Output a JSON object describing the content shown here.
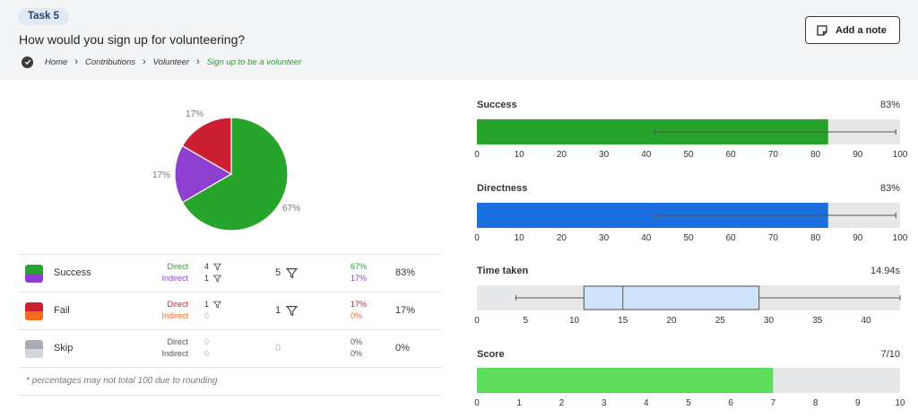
{
  "header": {
    "task_label": "Task 5",
    "question": "How would you sign up for volunteering?",
    "breadcrumb": [
      "Home",
      "Contributions",
      "Volunteer",
      "Sign up to be a volunteer"
    ],
    "add_note_label": "Add a note"
  },
  "legend": {
    "rows": [
      {
        "name": "Success",
        "colors": [
          "#27a42b",
          "#8e3fd0"
        ],
        "sub_labels": [
          "Direct",
          "Indirect"
        ],
        "sub_label_colors": [
          "#27a42b",
          "#8e3fd0"
        ],
        "sub_counts": [
          "4",
          "1"
        ],
        "sub_count_colors": [
          "#333333",
          "#333333"
        ],
        "sub_filter": [
          true,
          true
        ],
        "total": "5",
        "total_filter": true,
        "sub_pcts": [
          "67%",
          "17%"
        ],
        "sub_pct_colors": [
          "#27a42b",
          "#8e3fd0"
        ],
        "pct": "83%"
      },
      {
        "name": "Fail",
        "colors": [
          "#cc1f31",
          "#f26a1b"
        ],
        "sub_labels": [
          "Direct",
          "Indirect"
        ],
        "sub_label_colors": [
          "#cc1f31",
          "#f26a1b"
        ],
        "sub_counts": [
          "1",
          "0"
        ],
        "sub_count_colors": [
          "#333333",
          "#bbbbbb"
        ],
        "sub_filter": [
          true,
          false
        ],
        "total": "1",
        "total_filter": true,
        "sub_pcts": [
          "17%",
          "0%"
        ],
        "sub_pct_colors": [
          "#cc1f31",
          "#f26a1b"
        ],
        "pct": "17%"
      },
      {
        "name": "Skip",
        "colors": [
          "#a9adb3",
          "#d3d6da"
        ],
        "sub_labels": [
          "Direct",
          "Indirect"
        ],
        "sub_label_colors": [
          "#555555",
          "#555555"
        ],
        "sub_counts": [
          "0",
          "0"
        ],
        "sub_count_colors": [
          "#bbbbbb",
          "#bbbbbb"
        ],
        "sub_filter": [
          false,
          false
        ],
        "total": "0",
        "total_filter": false,
        "sub_pcts": [
          "0%",
          "0%"
        ],
        "sub_pct_colors": [
          "#555555",
          "#555555"
        ],
        "pct": "0%"
      }
    ],
    "footnote": "* percentages may not total 100 due to rounding"
  },
  "chart_data": [
    {
      "type": "pie",
      "slices": [
        {
          "label": "67%",
          "value": 66.7,
          "color": "#27a42b"
        },
        {
          "label": "17%",
          "value": 16.7,
          "color": "#8e3fd0"
        },
        {
          "label": "17%",
          "value": 16.7,
          "color": "#cc1f31"
        }
      ]
    },
    {
      "type": "bar",
      "title": "Success",
      "value_label": "83%",
      "value": 83,
      "range": [
        42,
        99
      ],
      "xlim": [
        0,
        100
      ],
      "ticks": [
        0,
        10,
        20,
        30,
        40,
        50,
        60,
        70,
        80,
        90,
        100
      ],
      "color": "#27a42b"
    },
    {
      "type": "bar",
      "title": "Directness",
      "value_label": "83%",
      "value": 83,
      "range": [
        42,
        99
      ],
      "xlim": [
        0,
        100
      ],
      "ticks": [
        0,
        10,
        20,
        30,
        40,
        50,
        60,
        70,
        80,
        90,
        100
      ],
      "color": "#1a6ee0"
    },
    {
      "type": "boxplot",
      "title": "Time taken",
      "value_label": "14.94s",
      "min": 4,
      "q1": 11,
      "median": 15,
      "q3": 29,
      "max": 43.5,
      "xlim": [
        0,
        43.5
      ],
      "ticks": [
        0,
        5,
        10,
        15,
        20,
        25,
        30,
        35,
        40
      ],
      "color": "#cfe3fb"
    },
    {
      "type": "bar",
      "title": "Score",
      "value_label": "7/10",
      "value": 7,
      "xlim": [
        0,
        10
      ],
      "ticks": [
        0,
        1,
        2,
        3,
        4,
        5,
        6,
        7,
        8,
        9,
        10
      ],
      "color": "#5ddd5b"
    }
  ]
}
